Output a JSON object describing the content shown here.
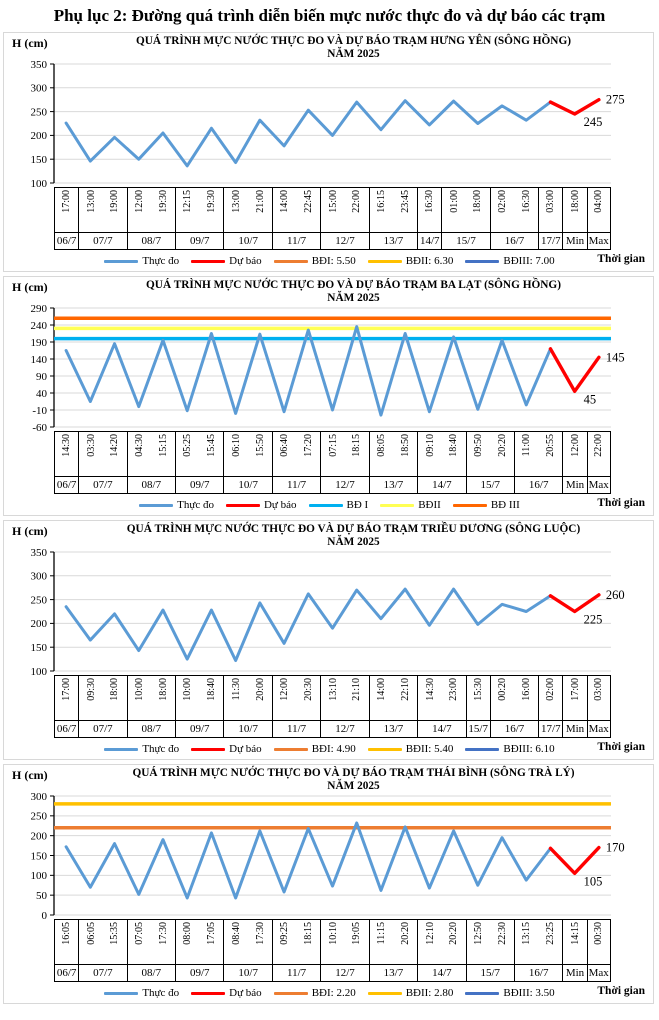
{
  "page_title": "Phụ lục 2: Đường quá trình diễn biến mực nước thực đo và dự báo các trạm",
  "chart_data": [
    {
      "type": "line",
      "station": "Hưng Yên",
      "title": "QUÁ TRÌNH MỰC NƯỚC THỰC ĐO VÀ DỰ BÁO TRẠM HƯNG YÊN  (SÔNG HỒNG)",
      "subtitle": "NĂM 2025",
      "ylabel": "H (cm)",
      "xlabel": "Thời gian",
      "ylim": [
        100,
        350
      ],
      "ytick_step": 50,
      "grid": true,
      "legend_position": "bottom",
      "groups": [
        {
          "date": "06/7",
          "times": [
            "17:00"
          ]
        },
        {
          "date": "07/7",
          "times": [
            "13:00",
            "19:00"
          ]
        },
        {
          "date": "08/7",
          "times": [
            "12:00",
            "19:30"
          ]
        },
        {
          "date": "09/7",
          "times": [
            "12:15",
            "19:30"
          ]
        },
        {
          "date": "10/7",
          "times": [
            "13:00",
            "21:00"
          ]
        },
        {
          "date": "11/7",
          "times": [
            "14:00",
            "22:45"
          ]
        },
        {
          "date": "12/7",
          "times": [
            "15:00",
            "22:00"
          ]
        },
        {
          "date": "13/7",
          "times": [
            "16:15",
            "23:45"
          ]
        },
        {
          "date": "14/7",
          "times": [
            "16:30"
          ]
        },
        {
          "date": "15/7",
          "times": [
            "01:00",
            "18:00"
          ]
        },
        {
          "date": "16/7",
          "times": [
            "02:00",
            "16:30"
          ]
        },
        {
          "date": "17/7",
          "times": [
            "03:00"
          ]
        },
        {
          "date": "Min",
          "times": [
            "18:00"
          ]
        },
        {
          "date": "Max",
          "times": [
            "04:00"
          ]
        }
      ],
      "values": [
        226,
        146,
        196,
        150,
        205,
        136,
        215,
        143,
        232,
        178,
        253,
        200,
        270,
        212,
        273,
        222,
        272,
        225,
        262,
        232,
        270,
        245,
        275
      ],
      "observed_count": 21,
      "forecast_min_label": "245",
      "forecast_max_label": "275",
      "series_colors": {
        "observed": "#5B9BD5",
        "forecast": "#FF0000"
      },
      "ref_lines": [],
      "legend": [
        {
          "label": "Thực đo",
          "color": "#5B9BD5"
        },
        {
          "label": "Dự báo",
          "color": "#FF0000"
        },
        {
          "label": "BĐI: 5.50",
          "color": "#ED7D31"
        },
        {
          "label": "BĐII: 6.30",
          "color": "#FFC000"
        },
        {
          "label": "BĐIII: 7.00",
          "color": "#4472C4"
        }
      ]
    },
    {
      "type": "line",
      "station": "Ba Lạt",
      "title": "QUÁ TRÌNH MỰC NƯỚC THỰC ĐO VÀ DỰ BÁO TRẠM BA LẠT (SÔNG HỒNG)",
      "subtitle": "NĂM 2025",
      "ylabel": "H (cm)",
      "xlabel": "Thời gian",
      "ylim": [
        -60,
        290
      ],
      "ytick_step": 50,
      "grid": true,
      "legend_position": "bottom",
      "groups": [
        {
          "date": "06/7",
          "times": [
            "14:30"
          ]
        },
        {
          "date": "07/7",
          "times": [
            "03:30",
            "14:20"
          ]
        },
        {
          "date": "08/7",
          "times": [
            "04:30",
            "15:15"
          ]
        },
        {
          "date": "09/7",
          "times": [
            "05:25",
            "15:45"
          ]
        },
        {
          "date": "10/7",
          "times": [
            "06:10",
            "15:50"
          ]
        },
        {
          "date": "11/7",
          "times": [
            "06:40",
            "17:20"
          ]
        },
        {
          "date": "12/7",
          "times": [
            "07:15",
            "18:15"
          ]
        },
        {
          "date": "13/7",
          "times": [
            "08:05",
            "18:50"
          ]
        },
        {
          "date": "14/7",
          "times": [
            "09:10",
            "18:40"
          ]
        },
        {
          "date": "15/7",
          "times": [
            "09:50",
            "20:20"
          ]
        },
        {
          "date": "16/7",
          "times": [
            "11:00",
            "20:55"
          ]
        },
        {
          "date": "Min",
          "times": [
            "12:00"
          ]
        },
        {
          "date": "Max",
          "times": [
            "22:00"
          ]
        }
      ],
      "values": [
        165,
        15,
        185,
        0,
        195,
        -12,
        215,
        -20,
        213,
        -15,
        225,
        -10,
        235,
        -25,
        215,
        -15,
        205,
        -8,
        195,
        5,
        170,
        45,
        145
      ],
      "observed_count": 21,
      "forecast_min_label": "45",
      "forecast_max_label": "145",
      "series_colors": {
        "observed": "#5B9BD5",
        "forecast": "#FF0000"
      },
      "ref_lines": [
        {
          "name": "BĐ I",
          "value": 200,
          "color": "#00B0F0"
        },
        {
          "name": "BĐII",
          "value": 230,
          "color": "#FFFF54"
        },
        {
          "name": "BĐ III",
          "value": 260,
          "color": "#FF6600"
        }
      ],
      "legend": [
        {
          "label": "Thực đo",
          "color": "#5B9BD5"
        },
        {
          "label": "Dự báo",
          "color": "#FF0000"
        },
        {
          "label": "BĐ I",
          "color": "#00B0F0"
        },
        {
          "label": "BĐII",
          "color": "#FFFF54"
        },
        {
          "label": "BĐ III",
          "color": "#FF6600"
        }
      ]
    },
    {
      "type": "line",
      "station": "Triều Dương",
      "title": "QUÁ TRÌNH MỰC NƯỚC THỰC ĐO VÀ DỰ BÁO TRẠM TRIỀU DƯƠNG  (SÔNG LUỘC)",
      "subtitle": "NĂM 2025",
      "ylabel": "H (cm)",
      "xlabel": "Thời gian",
      "ylim": [
        100,
        350
      ],
      "ytick_step": 50,
      "grid": true,
      "legend_position": "bottom",
      "groups": [
        {
          "date": "06/7",
          "times": [
            "17:00"
          ]
        },
        {
          "date": "07/7",
          "times": [
            "09:30",
            "18:00"
          ]
        },
        {
          "date": "08/7",
          "times": [
            "10:00",
            "18:00"
          ]
        },
        {
          "date": "09/7",
          "times": [
            "10:00",
            "18:40"
          ]
        },
        {
          "date": "10/7",
          "times": [
            "11:30",
            "20:00"
          ]
        },
        {
          "date": "11/7",
          "times": [
            "12:00",
            "20:30"
          ]
        },
        {
          "date": "12/7",
          "times": [
            "13:10",
            "21:10"
          ]
        },
        {
          "date": "13/7",
          "times": [
            "14:00",
            "22:10"
          ]
        },
        {
          "date": "14/7",
          "times": [
            "14:30",
            "23:00"
          ]
        },
        {
          "date": "15/7",
          "times": [
            "15:30"
          ]
        },
        {
          "date": "16/7",
          "times": [
            "00:20",
            "16:00"
          ]
        },
        {
          "date": "17/7",
          "times": [
            "02:00"
          ]
        },
        {
          "date": "Min",
          "times": [
            "17:00"
          ]
        },
        {
          "date": "Max",
          "times": [
            "03:00"
          ]
        }
      ],
      "values": [
        235,
        165,
        220,
        143,
        228,
        125,
        228,
        122,
        243,
        158,
        262,
        190,
        270,
        210,
        272,
        196,
        272,
        198,
        240,
        225,
        258,
        225,
        260
      ],
      "observed_count": 21,
      "forecast_min_label": "225",
      "forecast_max_label": "260",
      "series_colors": {
        "observed": "#5B9BD5",
        "forecast": "#FF0000"
      },
      "ref_lines": [],
      "legend": [
        {
          "label": "Thực đo",
          "color": "#5B9BD5"
        },
        {
          "label": "Dự báo",
          "color": "#FF0000"
        },
        {
          "label": "BĐI: 4.90",
          "color": "#ED7D31"
        },
        {
          "label": "BĐII: 5.40",
          "color": "#FFC000"
        },
        {
          "label": "BĐIII: 6.10",
          "color": "#4472C4"
        }
      ]
    },
    {
      "type": "line",
      "station": "Thái Bình",
      "title": "QUÁ TRÌNH MỰC NƯỚC THỰC ĐO VÀ DỰ BÁO TRẠM THÁI BÌNH (SÔNG TRÀ LÝ)",
      "subtitle": "NĂM 2025",
      "ylabel": "H (cm)",
      "xlabel": "Thời gian",
      "ylim": [
        0,
        300
      ],
      "ytick_step": 50,
      "grid": true,
      "legend_position": "bottom",
      "groups": [
        {
          "date": "06/7",
          "times": [
            "16:05"
          ]
        },
        {
          "date": "07/7",
          "times": [
            "06:05",
            "15:35"
          ]
        },
        {
          "date": "08/7",
          "times": [
            "07:05",
            "17:30"
          ]
        },
        {
          "date": "09/7",
          "times": [
            "08:00",
            "17:05"
          ]
        },
        {
          "date": "10/7",
          "times": [
            "08:40",
            "17:30"
          ]
        },
        {
          "date": "11/7",
          "times": [
            "09:25",
            "18:15"
          ]
        },
        {
          "date": "12/7",
          "times": [
            "10:10",
            "19:05"
          ]
        },
        {
          "date": "13/7",
          "times": [
            "11:15",
            "20:20"
          ]
        },
        {
          "date": "14/7",
          "times": [
            "12:10",
            "20:20"
          ]
        },
        {
          "date": "15/7",
          "times": [
            "12:50",
            "22:30"
          ]
        },
        {
          "date": "16/7",
          "times": [
            "13:15",
            "23:25"
          ]
        },
        {
          "date": "Min",
          "times": [
            "14:15"
          ]
        },
        {
          "date": "Max",
          "times": [
            "00:30"
          ]
        }
      ],
      "values": [
        172,
        70,
        180,
        52,
        190,
        43,
        207,
        43,
        212,
        58,
        218,
        73,
        232,
        62,
        222,
        68,
        212,
        75,
        195,
        88,
        168,
        105,
        170
      ],
      "observed_count": 21,
      "forecast_min_label": "105",
      "forecast_max_label": "170",
      "series_colors": {
        "observed": "#5B9BD5",
        "forecast": "#FF0000"
      },
      "ref_lines": [
        {
          "name": "BĐI",
          "value": 220,
          "color": "#ED7D31"
        },
        {
          "name": "BĐII",
          "value": 280,
          "color": "#FFC000"
        }
      ],
      "legend": [
        {
          "label": "Thực đo",
          "color": "#5B9BD5"
        },
        {
          "label": "Dự báo",
          "color": "#FF0000"
        },
        {
          "label": "BĐI: 2.20",
          "color": "#ED7D31"
        },
        {
          "label": "BĐII: 2.80",
          "color": "#FFC000"
        },
        {
          "label": "BĐIII: 3.50",
          "color": "#4472C4"
        }
      ]
    }
  ]
}
